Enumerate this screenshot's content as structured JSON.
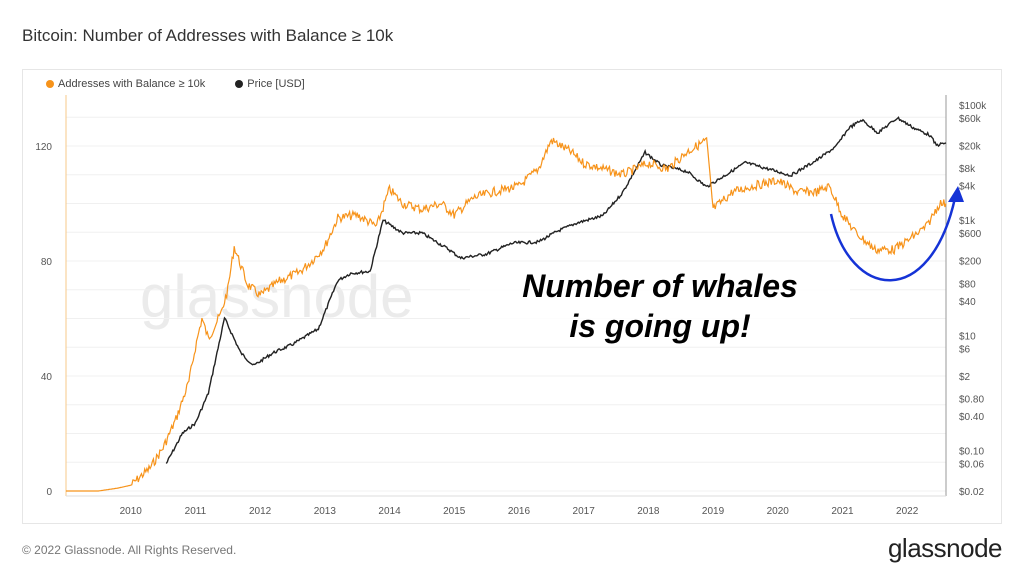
{
  "title": "Bitcoin: Number of Addresses with Balance ≥ 10k",
  "footer": "© 2022 Glassnode. All Rights Reserved.",
  "brand": "glassnode",
  "watermark": "glassnode",
  "annotation": {
    "line1": "Number of whales",
    "line2": "is going up!",
    "arrow_color": "#1533d6"
  },
  "chart_data": {
    "type": "line",
    "title": "Bitcoin: Number of Addresses with Balance ≥ 10k",
    "xlabel": "",
    "ylabel": "",
    "x_ticks": [
      "2010",
      "2011",
      "2012",
      "2013",
      "2014",
      "2015",
      "2016",
      "2017",
      "2018",
      "2019",
      "2020",
      "2021",
      "2022"
    ],
    "xlim": [
      2009.0,
      2022.6
    ],
    "left_axis": {
      "ylim": [
        0,
        137
      ],
      "ticks": [
        "0",
        "40",
        "80",
        "120"
      ],
      "tick_values": [
        0,
        40,
        80,
        120
      ]
    },
    "right_axis": {
      "scale": "log",
      "ylim": [
        0.02,
        100000
      ],
      "ticks": [
        "$100k",
        "$60k",
        "$20k",
        "$8k",
        "$4k",
        "$1k",
        "$600",
        "$200",
        "$80",
        "$40",
        "$10",
        "$6",
        "$2",
        "$0.80",
        "$0.40",
        "$0.10",
        "$0.06",
        "$0.02"
      ],
      "tick_values": [
        100000,
        60000,
        20000,
        8000,
        4000,
        1000,
        600,
        200,
        80,
        40,
        10,
        6,
        2,
        0.8,
        0.4,
        0.1,
        0.06,
        0.02
      ]
    },
    "grid": true,
    "legend_position": "top-left",
    "series": [
      {
        "name": "Addresses with Balance ≥ 10k",
        "axis": "left",
        "color": "#f7931a",
        "x": [
          2009.0,
          2009.5,
          2009.8,
          2010.0,
          2010.3,
          2010.5,
          2010.7,
          2010.9,
          2011.0,
          2011.1,
          2011.2,
          2011.4,
          2011.5,
          2011.6,
          2011.8,
          2012.0,
          2012.3,
          2012.6,
          2012.8,
          2013.0,
          2013.2,
          2013.5,
          2013.8,
          2014.0,
          2014.2,
          2014.5,
          2014.8,
          2015.0,
          2015.3,
          2015.6,
          2016.0,
          2016.3,
          2016.5,
          2016.8,
          2017.0,
          2017.3,
          2017.6,
          2018.0,
          2018.3,
          2018.6,
          2018.9,
          2019.0,
          2019.3,
          2019.6,
          2020.0,
          2020.3,
          2020.6,
          2020.8,
          2021.0,
          2021.2,
          2021.5,
          2021.8,
          2022.0,
          2022.3,
          2022.5,
          2022.6
        ],
        "y": [
          0,
          0,
          1,
          2,
          8,
          15,
          25,
          38,
          50,
          60,
          53,
          62,
          70,
          85,
          72,
          68,
          73,
          76,
          80,
          85,
          95,
          96,
          92,
          105,
          100,
          98,
          100,
          96,
          102,
          104,
          106,
          112,
          122,
          118,
          114,
          112,
          110,
          114,
          112,
          118,
          122,
          98,
          104,
          106,
          108,
          104,
          104,
          106,
          96,
          90,
          84,
          84,
          87,
          92,
          100,
          100
        ]
      },
      {
        "name": "Price [USD]",
        "axis": "right",
        "color": "#222222",
        "x": [
          2010.55,
          2010.8,
          2011.0,
          2011.2,
          2011.45,
          2011.7,
          2011.9,
          2012.2,
          2012.5,
          2012.9,
          2013.2,
          2013.4,
          2013.7,
          2013.9,
          2014.2,
          2014.5,
          2014.9,
          2015.1,
          2015.5,
          2015.9,
          2016.3,
          2016.6,
          2016.9,
          2017.3,
          2017.6,
          2017.95,
          2018.2,
          2018.6,
          2018.9,
          2019.5,
          2019.9,
          2020.2,
          2020.6,
          2020.9,
          2021.1,
          2021.3,
          2021.55,
          2021.85,
          2022.1,
          2022.35,
          2022.45,
          2022.6
        ],
        "y": [
          0.06,
          0.2,
          0.3,
          1,
          20,
          5,
          3,
          5,
          7,
          13,
          90,
          120,
          130,
          1000,
          600,
          600,
          320,
          220,
          260,
          400,
          420,
          650,
          900,
          1200,
          3000,
          15000,
          9000,
          7000,
          3800,
          10000,
          7500,
          6000,
          11000,
          19000,
          40000,
          55000,
          33000,
          60000,
          40000,
          30000,
          20000,
          22000
        ]
      }
    ]
  }
}
